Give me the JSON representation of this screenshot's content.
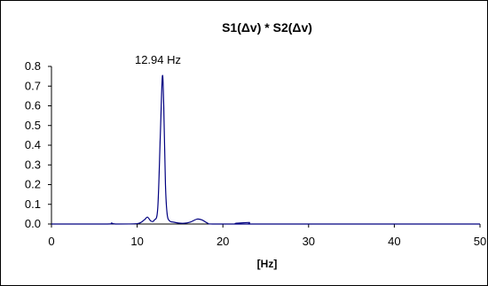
{
  "chart_data": {
    "type": "line",
    "title": "S1(Δv) * S2(Δv)",
    "xlabel": "[Hz]",
    "ylabel": "",
    "xlim": [
      0,
      50
    ],
    "ylim": [
      0,
      0.8
    ],
    "x_ticks": [
      0,
      10,
      20,
      30,
      40,
      50
    ],
    "y_ticks": [
      0.0,
      0.1,
      0.2,
      0.3,
      0.4,
      0.5,
      0.6,
      0.7,
      0.8
    ],
    "y_tick_labels": [
      "0.0",
      "0.1",
      "0.2",
      "0.3",
      "0.4",
      "0.5",
      "0.6",
      "0.7",
      "0.8"
    ],
    "grid": false,
    "legend": "none",
    "line_color": "#000080",
    "annotation": {
      "text": "12.94 Hz",
      "x": 12.94,
      "y": 0.75
    },
    "series": [
      {
        "x": [
          0,
          6.5,
          7.0,
          7.5,
          10.0,
          10.8,
          11.2,
          11.6,
          12.0,
          12.4,
          12.7,
          12.94,
          13.1,
          13.3,
          13.5,
          13.8,
          14.2,
          14.8,
          15.5,
          16.2,
          17.0,
          17.6,
          18.2,
          18.8,
          22.7,
          23.1,
          23.5,
          50
        ],
        "y": [
          0.0,
          0.0,
          0.005,
          0.0,
          0.002,
          0.02,
          0.035,
          0.015,
          0.02,
          0.08,
          0.45,
          0.75,
          0.6,
          0.2,
          0.05,
          0.015,
          0.01,
          0.005,
          0.004,
          0.01,
          0.025,
          0.02,
          0.005,
          0.0,
          0.0,
          0.008,
          0.0,
          0.0
        ]
      }
    ]
  }
}
